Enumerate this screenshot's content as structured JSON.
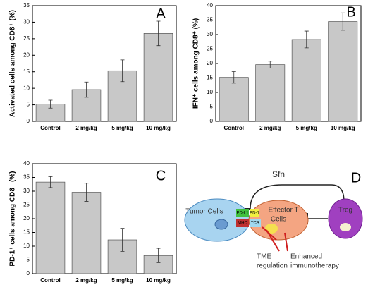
{
  "chart_data": [
    {
      "type": "bar",
      "panel": "A",
      "ylabel": "Activated cells among CD8⁺ (%)",
      "categories": [
        "Control",
        "2 mg/kg",
        "5 mg/kg",
        "10 mg/kg"
      ],
      "values": [
        5.2,
        9.6,
        15.3,
        26.6
      ],
      "errors": [
        1.2,
        2.3,
        3.3,
        3.7
      ],
      "color": "#c8c8c8",
      "ylim": [
        0,
        35
      ],
      "yticks": [
        0,
        5,
        10,
        15,
        20,
        25,
        30,
        35
      ]
    },
    {
      "type": "bar",
      "panel": "B",
      "ylabel": "IFN⁺ cells among CD8⁺ (%)",
      "categories": [
        "Control",
        "2 mg/kg",
        "5 mg/kg",
        "10 mg/kg"
      ],
      "values": [
        15.2,
        19.6,
        28.3,
        34.5
      ],
      "errors": [
        2.0,
        1.2,
        2.9,
        3.0
      ],
      "color": "#c8c8c8",
      "ylim": [
        0,
        40
      ],
      "yticks": [
        0,
        5,
        10,
        15,
        20,
        25,
        30,
        35,
        40
      ]
    },
    {
      "type": "bar",
      "panel": "C",
      "ylabel": "PD-1⁺ cells among CD8⁺ (%)",
      "categories": [
        "Control",
        "2 mg/kg",
        "5 mg/kg",
        "10 mg/kg"
      ],
      "values": [
        33.3,
        29.6,
        12.3,
        6.6
      ],
      "errors": [
        2.0,
        3.3,
        4.2,
        2.6
      ],
      "color": "#c8c8c8",
      "ylim": [
        0,
        40
      ],
      "yticks": [
        0,
        5,
        10,
        15,
        20,
        25,
        30,
        35,
        40
      ]
    }
  ],
  "diagram": {
    "panel": "D",
    "sfn": "Sfn",
    "tumor": "Tumor Cells",
    "effector": [
      "Effector T",
      "Cells"
    ],
    "treg": "Treg",
    "pdl1": "PD-L1",
    "mhc": "MHC",
    "pd1": "PD-1",
    "tcr": "TCR",
    "tme": [
      "TME",
      "regulation"
    ],
    "enhanced": [
      "Enhanced",
      "immunotherapy"
    ]
  }
}
